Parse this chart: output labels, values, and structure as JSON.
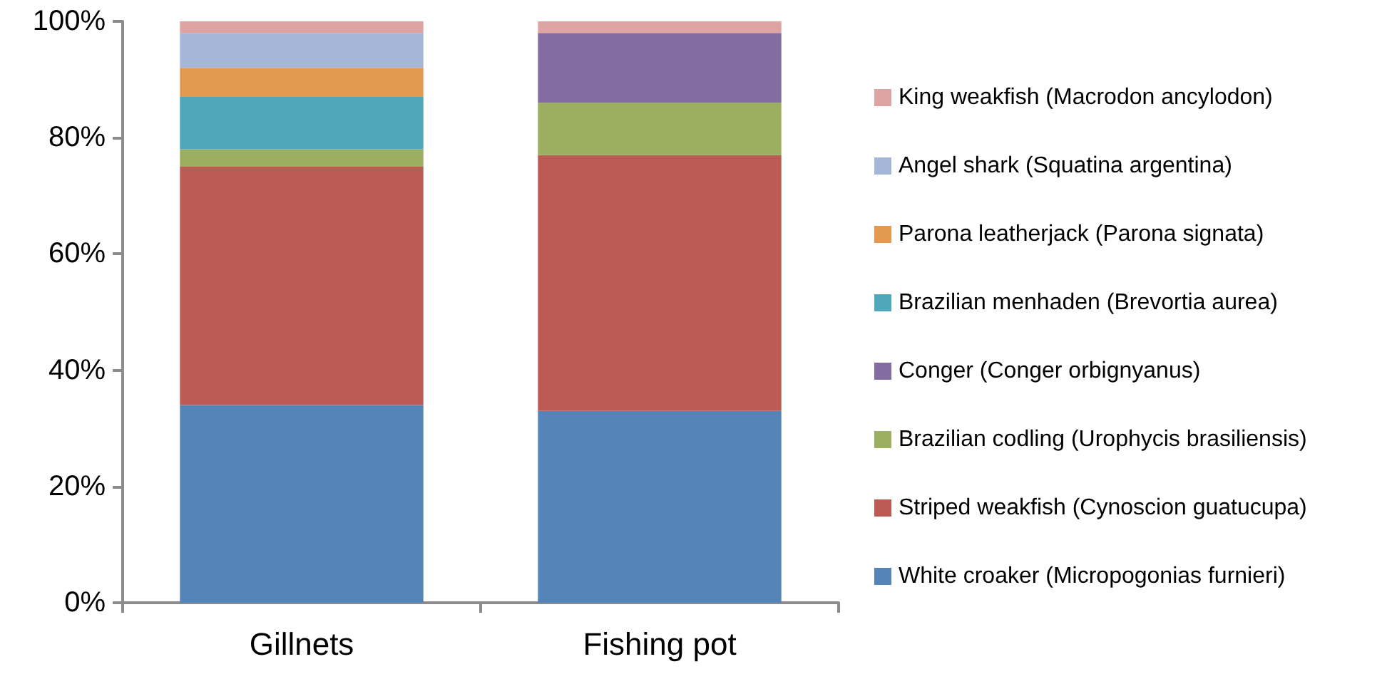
{
  "chart_data": {
    "type": "bar",
    "stacked": true,
    "categories": [
      "Gillnets",
      "Fishing pot"
    ],
    "series": [
      {
        "name": "White croaker (Micropogonias furnieri)",
        "color": "#5585b8",
        "values": [
          34,
          33
        ]
      },
      {
        "name": "Striped weakfish (Cynoscion guatucupa)",
        "color": "#bb5b54",
        "values": [
          41,
          44
        ]
      },
      {
        "name": "Brazilian codling (Urophycis brasiliensis)",
        "color": "#9caf60",
        "values": [
          3,
          9
        ]
      },
      {
        "name": "Conger (Conger orbignyanus)",
        "color": "#836da0",
        "values": [
          0,
          12
        ]
      },
      {
        "name": "Brazilian menhaden (Brevortia aurea)",
        "color": "#4fa7bb",
        "values": [
          9,
          0
        ]
      },
      {
        "name": "Parona leatherjack (Parona signata)",
        "color": "#e3994f",
        "values": [
          5,
          0
        ]
      },
      {
        "name": "Angel shark (Squatina argentina)",
        "color": "#a4b7d9",
        "values": [
          6,
          0
        ]
      },
      {
        "name": "King weakfish (Macrodon ancylodon)",
        "color": "#dea3a3",
        "values": [
          2,
          2
        ]
      }
    ],
    "ylim": [
      0,
      100
    ],
    "yticks": [
      {
        "value": 0,
        "label": "0%"
      },
      {
        "value": 20,
        "label": "20%"
      },
      {
        "value": 40,
        "label": "40%"
      },
      {
        "value": 60,
        "label": "60%"
      },
      {
        "value": 80,
        "label": "80%"
      },
      {
        "value": 100,
        "label": "100%"
      }
    ],
    "grid": false,
    "legend": "right"
  }
}
